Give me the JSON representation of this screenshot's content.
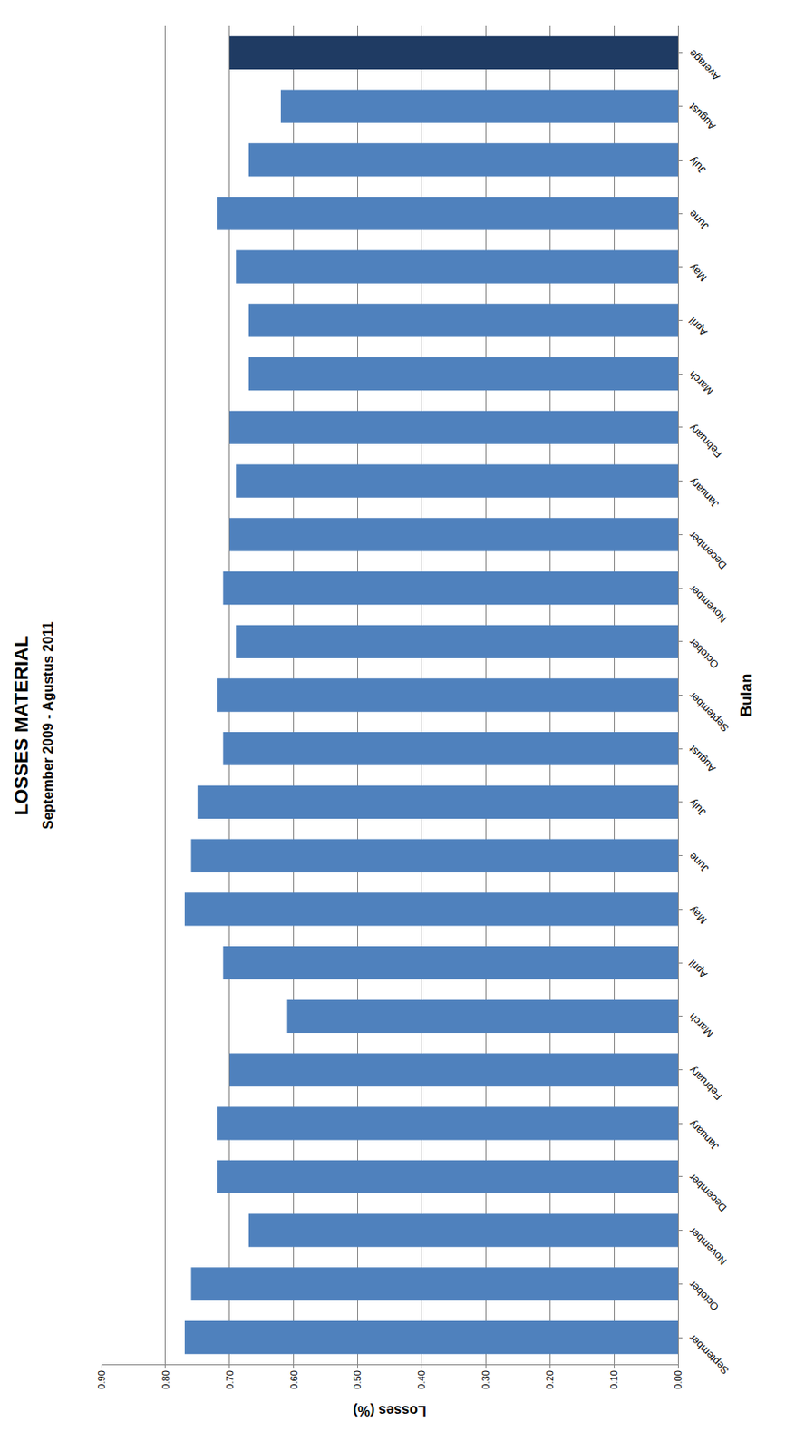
{
  "chart_data": {
    "type": "bar",
    "title": "LOSSES MATERIAL",
    "subtitle": "September 2009 - Agustus 2011",
    "x_label": "Bulan",
    "y_label": "Losses (%)",
    "categories": [
      "September",
      "October",
      "November",
      "December",
      "January",
      "February",
      "March",
      "April",
      "May",
      "June",
      "July",
      "August",
      "September",
      "October",
      "November",
      "December",
      "January",
      "February",
      "March",
      "April",
      "May",
      "June",
      "July",
      "August",
      "Average"
    ],
    "values": [
      0.77,
      0.76,
      0.67,
      0.72,
      0.72,
      0.7,
      0.61,
      0.71,
      0.77,
      0.76,
      0.75,
      0.71,
      0.72,
      0.69,
      0.71,
      0.7,
      0.69,
      0.7,
      0.67,
      0.67,
      0.69,
      0.72,
      0.67,
      0.62,
      0.7
    ],
    "colors": [
      "#4f81bd",
      "#4f81bd",
      "#4f81bd",
      "#4f81bd",
      "#4f81bd",
      "#4f81bd",
      "#4f81bd",
      "#4f81bd",
      "#4f81bd",
      "#4f81bd",
      "#4f81bd",
      "#4f81bd",
      "#4f81bd",
      "#4f81bd",
      "#4f81bd",
      "#4f81bd",
      "#4f81bd",
      "#4f81bd",
      "#4f81bd",
      "#4f81bd",
      "#4f81bd",
      "#4f81bd",
      "#4f81bd",
      "#4f81bd",
      "#1f3b63"
    ],
    "ylim": [
      0,
      0.9
    ],
    "yticks": [
      {
        "value": 0,
        "label": "0.00"
      },
      {
        "value": 0.1,
        "label": "0.10"
      },
      {
        "value": 0.2,
        "label": "0.20"
      },
      {
        "value": 0.3,
        "label": "0.30"
      },
      {
        "value": 0.4,
        "label": "0.40"
      },
      {
        "value": 0.5,
        "label": "0.50"
      },
      {
        "value": 0.6,
        "label": "0.60"
      },
      {
        "value": 0.7,
        "label": "0.70"
      },
      {
        "value": 0.8,
        "label": "0.80"
      },
      {
        "value": 0.9,
        "label": "0.90"
      }
    ],
    "grid": true
  }
}
